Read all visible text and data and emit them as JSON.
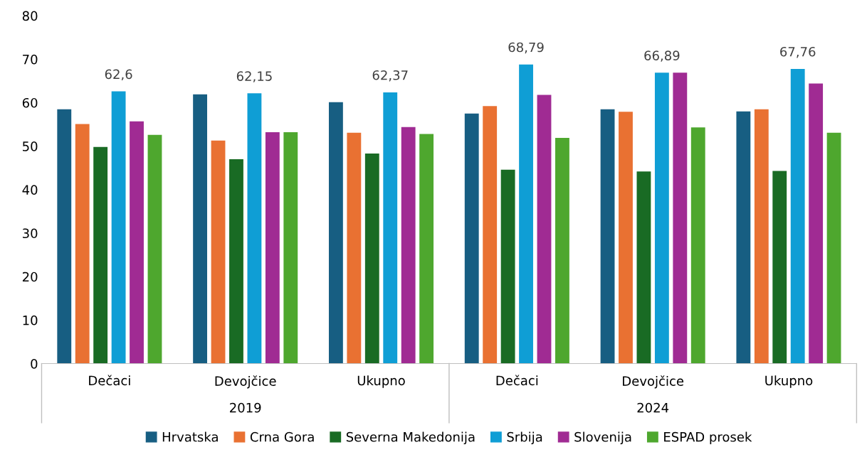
{
  "chart_data": {
    "type": "bar",
    "categories": [
      "Dečaci",
      "Devojčice",
      "Ukupno",
      "Dečaci",
      "Devojčice",
      "Ukupno"
    ],
    "annotations": [
      "2019",
      "2024"
    ],
    "ylim": [
      0,
      80
    ],
    "yticks": [
      0,
      10,
      20,
      30,
      40,
      50,
      60,
      70,
      80
    ],
    "grid": false,
    "legend": "bottom",
    "series": [
      {
        "name": "Hrvatska",
        "color": "#175e82",
        "values": [
          58.5,
          61.9,
          60.1,
          57.5,
          58.5,
          58.0
        ]
      },
      {
        "name": "Crna Gora",
        "color": "#e97132",
        "values": [
          55.1,
          51.3,
          53.1,
          59.2,
          57.9,
          58.5
        ]
      },
      {
        "name": "Severna Makedonija",
        "color": "#196b24",
        "values": [
          49.8,
          47.0,
          48.3,
          44.6,
          44.2,
          44.3
        ]
      },
      {
        "name": "Srbija",
        "color": "#0f9ed5",
        "values": [
          62.6,
          62.15,
          62.37,
          68.79,
          66.89,
          67.76
        ],
        "value_labels": [
          "62,6",
          "62,15",
          "62,37",
          "68,79",
          "66,89",
          "67,76"
        ]
      },
      {
        "name": "Slovenija",
        "color": "#a02b93",
        "values": [
          55.7,
          53.2,
          54.4,
          61.8,
          66.9,
          64.4
        ]
      },
      {
        "name": "ESPAD prosek",
        "color": "#4ea72e",
        "values": [
          52.6,
          53.2,
          52.8,
          51.9,
          54.3,
          53.1
        ]
      }
    ]
  }
}
